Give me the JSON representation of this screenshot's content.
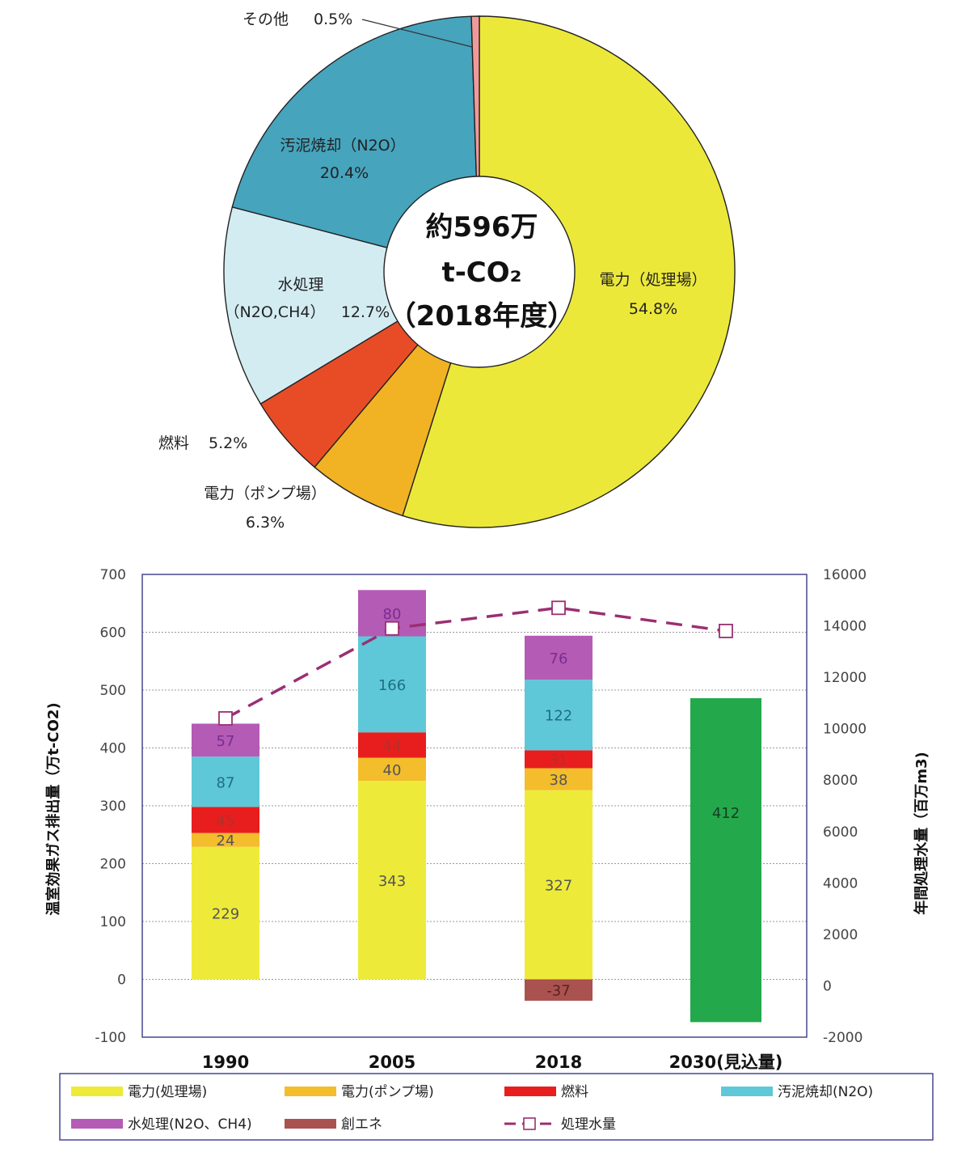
{
  "chart_data": [
    {
      "type": "pie",
      "center_text": [
        "約596万",
        "t-CO₂",
        "（2018年度）"
      ],
      "slices": [
        {
          "label": "電力（処理場）",
          "value": 54.8,
          "pct_text": "54.8%",
          "color": "#ece83a"
        },
        {
          "label": "電力（ポンプ場）",
          "value": 6.3,
          "pct_text": "6.3%",
          "color": "#f1b324"
        },
        {
          "label": "燃料",
          "value": 5.2,
          "pct_text": "5.2%",
          "color": "#e84c27"
        },
        {
          "label": "水処理",
          "sublabel": "（N2O,CH4）",
          "value": 12.7,
          "pct_text": "12.7%",
          "color": "#d3ecf2"
        },
        {
          "label": "汚泥焼却（N2O）",
          "value": 20.4,
          "pct_text": "20.4%",
          "color": "#46a4bd"
        },
        {
          "label": "その他",
          "value": 0.5,
          "pct_text": "0.5%",
          "color": "#f1999a"
        }
      ]
    },
    {
      "type": "bar",
      "stacked": true,
      "categories": [
        "1990",
        "2005",
        "2018",
        "2030(見込量)"
      ],
      "ylabel": "温室効果ガス排出量（万t-CO2)",
      "y2label": "年間処理水量（百万m3)",
      "ylim": [
        -100,
        700
      ],
      "y2lim": [
        -2000,
        16000
      ],
      "yticks": [
        -100,
        0,
        100,
        200,
        300,
        400,
        500,
        600,
        700
      ],
      "y2ticks": [
        -2000,
        0,
        2000,
        4000,
        6000,
        8000,
        10000,
        12000,
        14000,
        16000
      ],
      "grid": true,
      "series": [
        {
          "name": "電力(処理場)",
          "color": "#eeea3a",
          "label_color": "#555555",
          "values": [
            229,
            343,
            327,
            null
          ]
        },
        {
          "name": "電力(ポンプ場)",
          "color": "#f3bd2c",
          "label_color": "#555555",
          "values": [
            24,
            40,
            38,
            null
          ]
        },
        {
          "name": "燃料",
          "color": "#e81e1e",
          "label_color": "#b3302a",
          "values": [
            45,
            44,
            31,
            null
          ]
        },
        {
          "name": "汚泥焼却(N2O)",
          "color": "#5ec8d8",
          "label_color": "#1f6f80",
          "values": [
            87,
            166,
            122,
            null
          ]
        },
        {
          "name": "水処理(N2O、CH4)",
          "color": "#b45bb5",
          "label_color": "#7a2d8e",
          "values": [
            57,
            80,
            76,
            null
          ]
        },
        {
          "name": "創エネ",
          "color": "#a9524f",
          "label_color": "#5a2222",
          "values": [
            null,
            null,
            -37,
            null
          ]
        }
      ],
      "value_labels": [
        [
          "229",
          "24",
          "45",
          "87",
          "57"
        ],
        [
          "343",
          "40",
          "44",
          "166",
          "80"
        ],
        [
          "327",
          "38",
          "31",
          "122",
          "76",
          "-37"
        ],
        [
          "412"
        ]
      ],
      "projection": {
        "category": "2030(見込量)",
        "label": "412",
        "top": 486,
        "bottom": -74,
        "color": "#23a94c"
      },
      "line": {
        "name": "処理水量",
        "color": "#9b2f72",
        "values": [
          10400,
          13900,
          14700,
          13800
        ]
      }
    }
  ]
}
